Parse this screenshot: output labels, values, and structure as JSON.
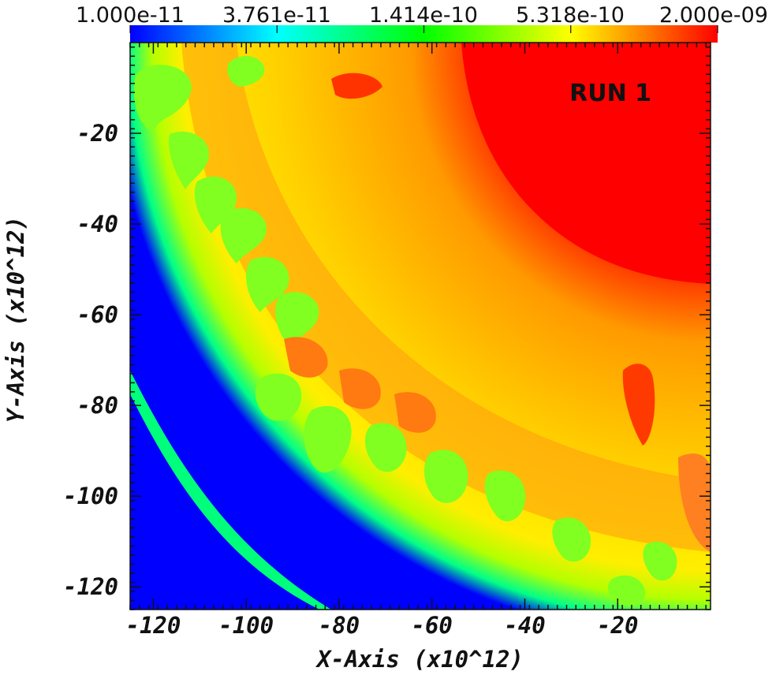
{
  "chart_data": {
    "type": "heatmap",
    "title": "",
    "xlabel": "X-Axis (x10^12)",
    "ylabel": "Y-Axis (x10^12)",
    "xlim": [
      -125,
      0
    ],
    "ylim": [
      -125,
      0
    ],
    "x_ticks": [
      -120,
      -100,
      -80,
      -60,
      -40,
      -20
    ],
    "y_ticks": [
      -120,
      -100,
      -80,
      -60,
      -40,
      -20
    ],
    "colorbar": {
      "scale": "log",
      "min": 1e-11,
      "max": 2e-09,
      "tick_labels": [
        "1.000e-11",
        "3.761e-11",
        "1.414e-10",
        "5.318e-10",
        "2.000e-09"
      ],
      "colormap": [
        "#0000ff",
        "#00ffff",
        "#00ff00",
        "#ffff00",
        "#ff0000"
      ]
    },
    "annotation": "RUN 1"
  }
}
